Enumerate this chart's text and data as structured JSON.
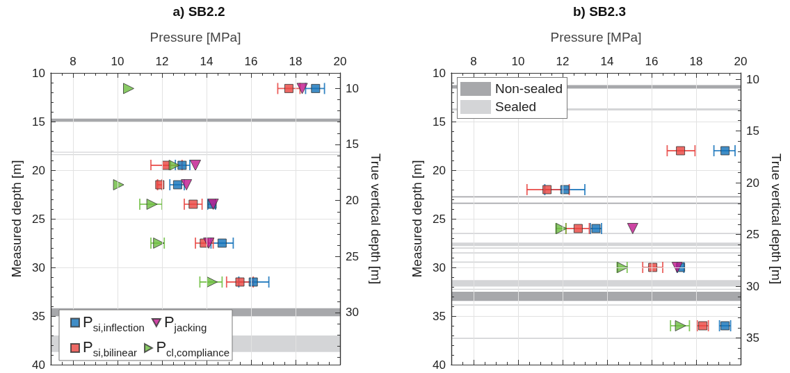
{
  "chart_data": [
    {
      "type": "scatter",
      "title": "a) SB2.2",
      "xlabel": "Pressure [MPa]",
      "ylabel": "Measured depth [m]",
      "y2label": "True vertical depth [m]",
      "xlim": [
        7,
        20
      ],
      "xticks": [
        8,
        10,
        12,
        14,
        16,
        18,
        20
      ],
      "ylim": [
        40,
        10
      ],
      "yticks": [
        10,
        15,
        20,
        25,
        30,
        35,
        40
      ],
      "y2lim": [
        34.65,
        8.62
      ],
      "y2ticks": [
        10,
        15,
        20,
        25,
        30
      ],
      "grid": true,
      "legend": "bottom left",
      "series": [
        {
          "name": "P$_{si,inflection}$",
          "color": "#1070b8",
          "marker": "square",
          "x": [
            18.9,
            12.9,
            12.7,
            14.25,
            14.7,
            16.1
          ],
          "values": [
            11.6,
            19.5,
            21.5,
            23.5,
            27.5,
            31.5
          ],
          "xerrors": [
            [
              18.45,
              19.3
            ],
            [
              12.6,
              13.25
            ],
            [
              12.35,
              13.0
            ],
            [
              14.05,
              14.4
            ],
            [
              14.2,
              15.2
            ],
            [
              15.45,
              16.8
            ]
          ]
        },
        {
          "name": "P$_{si,bilinear}$",
          "color": "#e8433f",
          "marker": "square",
          "x": [
            17.7,
            12.2,
            11.9,
            13.4,
            13.9,
            15.5
          ],
          "values": [
            11.6,
            19.5,
            21.5,
            23.5,
            27.5,
            31.5
          ],
          "xerrors": [
            [
              17.2,
              18.2
            ],
            [
              11.5,
              12.9
            ],
            [
              11.8,
              12.0
            ],
            [
              13.0,
              13.8
            ],
            [
              13.5,
              14.3
            ],
            [
              14.9,
              16.1
            ]
          ]
        },
        {
          "name": "P$_{jacking}$",
          "color": "#c0168c",
          "marker": "triangle-down",
          "x": [
            18.3,
            13.5,
            13.1,
            14.3,
            14.1
          ],
          "values": [
            11.6,
            19.5,
            21.5,
            23.5,
            27.5
          ]
        },
        {
          "name": "P$_{cl,compliance}$",
          "color": "#6cbd3e",
          "marker": "triangle-right",
          "x": [
            10.5,
            12.55,
            10.05,
            11.55,
            11.85,
            14.25
          ],
          "values": [
            11.6,
            19.5,
            21.5,
            23.5,
            27.5,
            31.5
          ],
          "xerrors": [
            null,
            null,
            null,
            [
              11.0,
              12.0
            ],
            [
              11.5,
              12.1
            ],
            [
              13.7,
              14.7
            ]
          ]
        }
      ],
      "bands": [
        {
          "axis": "y",
          "from": 14.7,
          "to": 15.05,
          "color": "#a7a8ab"
        },
        {
          "axis": "y",
          "from": 18.1,
          "to": 18.2,
          "color": "#d4d5d7"
        },
        {
          "axis": "y",
          "from": 18.35,
          "to": 18.45,
          "color": "#d4d5d7"
        },
        {
          "axis": "y",
          "from": 34.2,
          "to": 35.0,
          "color": "#a7a8ab"
        },
        {
          "axis": "y",
          "from": 37.0,
          "to": 38.7,
          "color": "#d4d5d7"
        }
      ]
    },
    {
      "type": "scatter",
      "title": "b) SB2.3",
      "xlabel": "Pressure [MPa]",
      "ylabel": "Measured depth [m]",
      "y2label": "True vertical depth [m]",
      "xlim": [
        7,
        20
      ],
      "xticks": [
        8,
        10,
        12,
        14,
        16,
        18,
        20
      ],
      "ylim": [
        40,
        10
      ],
      "yticks": [
        10,
        15,
        20,
        25,
        30,
        35,
        40
      ],
      "y2lim": [
        37.57,
        9.39
      ],
      "y2ticks": [
        10,
        15,
        20,
        25,
        30,
        35
      ],
      "grid": true,
      "legend": "top left",
      "series": [
        {
          "color": "#1070b8",
          "marker": "square",
          "x": [
            19.3,
            12.1,
            13.5,
            17.3,
            19.3
          ],
          "values": [
            18,
            22,
            26,
            30,
            36
          ],
          "xerrors": [
            [
              18.8,
              19.75
            ],
            [
              11.2,
              13.0
            ],
            [
              13.25,
              13.75
            ],
            [
              17.15,
              17.45
            ],
            [
              19.05,
              19.55
            ]
          ]
        },
        {
          "color": "#e8433f",
          "marker": "square",
          "x": [
            17.3,
            11.3,
            12.7,
            16.05,
            18.3
          ],
          "values": [
            18,
            22,
            26,
            30,
            36
          ],
          "xerrors": [
            [
              16.7,
              17.95
            ],
            [
              10.4,
              12.3
            ],
            [
              12.15,
              13.2
            ],
            [
              15.6,
              16.5
            ],
            [
              18.05,
              18.55
            ]
          ]
        },
        {
          "color": "#c0168c",
          "marker": "triangle-down",
          "x": [
            15.15,
            17.15
          ],
          "values": [
            26,
            30
          ]
        },
        {
          "color": "#6cbd3e",
          "marker": "triangle-right",
          "x": [
            11.95,
            14.7,
            17.3
          ],
          "values": [
            26,
            30,
            36
          ],
          "xerrors": [
            [
              11.7,
              12.15
            ],
            [
              14.45,
              14.9
            ],
            [
              16.85,
              17.7
            ]
          ]
        }
      ],
      "bands": [
        {
          "axis": "y",
          "from": 11.25,
          "to": 11.6,
          "color": "#a7a8ab",
          "label": "Non-sealed"
        },
        {
          "axis": "y",
          "from": 13.65,
          "to": 13.85,
          "color": "#d4d5d7",
          "label": "Sealed"
        },
        {
          "axis": "y",
          "from": 22.68,
          "to": 22.8,
          "color": "#a7a8ab"
        },
        {
          "axis": "y",
          "from": 23.34,
          "to": 23.46,
          "color": "#a7a8ab"
        },
        {
          "axis": "y",
          "from": 26.45,
          "to": 26.57,
          "color": "#d4d5d7"
        },
        {
          "axis": "y",
          "from": 27.45,
          "to": 27.8,
          "color": "#d4d5d7"
        },
        {
          "axis": "y",
          "from": 27.95,
          "to": 28.07,
          "color": "#d4d5d7"
        },
        {
          "axis": "y",
          "from": 28.45,
          "to": 28.57,
          "color": "#d4d5d7"
        },
        {
          "axis": "y",
          "from": 29.4,
          "to": 29.52,
          "color": "#d4d5d7"
        },
        {
          "axis": "y",
          "from": 31.3,
          "to": 31.97,
          "color": "#d4d5d7"
        },
        {
          "axis": "y",
          "from": 32.2,
          "to": 32.3,
          "color": "#d4d5d7"
        },
        {
          "axis": "y",
          "from": 32.5,
          "to": 33.45,
          "color": "#a7a8ab"
        },
        {
          "axis": "y",
          "from": 33.8,
          "to": 33.92,
          "color": "#d4d5d7"
        },
        {
          "axis": "y",
          "from": 37.24,
          "to": 37.36,
          "color": "#d4d5d7"
        }
      ]
    }
  ]
}
